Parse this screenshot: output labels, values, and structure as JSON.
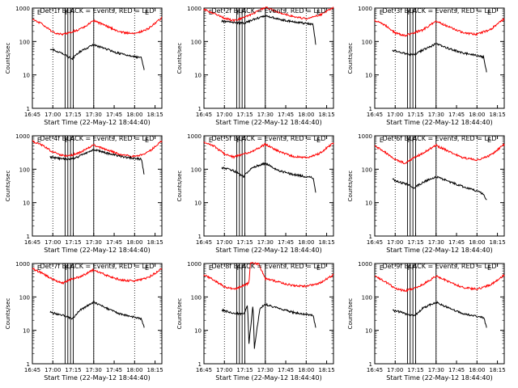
{
  "chart_data": [
    {
      "type": "line",
      "title": "Det 1f BLACK = Events, RED = LLD",
      "xlabel": "Start Time (22-May-12 18:44:40)",
      "ylabel": "Counts/sec",
      "yscale": "log",
      "ylim": [
        1,
        1000
      ],
      "grid": false,
      "x_ticks": [
        "16:45",
        "17:00",
        "17:15",
        "17:30",
        "17:45",
        "18:00",
        "18:15"
      ],
      "y_ticks": [
        "1",
        "10",
        "100",
        "1000"
      ],
      "markers": [
        "E",
        "F",
        "F",
        "E"
      ],
      "series": [
        {
          "color": "#ff0000",
          "x": [
            "16:45",
            "16:52",
            "17:00",
            "17:07",
            "17:13",
            "17:20",
            "17:30",
            "17:40",
            "17:50",
            "18:00",
            "18:10",
            "18:20"
          ],
          "values": [
            460,
            340,
            190,
            160,
            190,
            230,
            420,
            280,
            190,
            170,
            240,
            510
          ]
        },
        {
          "color": "#000000",
          "x": [
            "16:58",
            "17:04",
            "17:09",
            "17:14",
            "17:20",
            "17:30",
            "17:40",
            "17:50",
            "18:00",
            "18:05",
            "18:07"
          ],
          "values": [
            60,
            50,
            40,
            30,
            50,
            80,
            58,
            42,
            35,
            32,
            14
          ]
        }
      ]
    },
    {
      "type": "line",
      "title": "Det 2f BLACK = Events, RED = LLD",
      "xlabel": "Start Time (22-May-12 18:44:40)",
      "ylabel": "Counts/sec",
      "yscale": "log",
      "ylim": [
        1,
        1000
      ],
      "grid": false,
      "x_ticks": [
        "16:45",
        "17:00",
        "17:15",
        "17:30",
        "17:45",
        "18:00",
        "18:15"
      ],
      "y_ticks": [
        "1",
        "10",
        "100",
        "1000"
      ],
      "markers": [
        "E",
        "F",
        "F",
        "E"
      ],
      "series": [
        {
          "color": "#ff0000",
          "x": [
            "16:45",
            "16:52",
            "17:00",
            "17:07",
            "17:13",
            "17:20",
            "17:30",
            "17:40",
            "17:50",
            "18:00",
            "18:10",
            "18:20"
          ],
          "values": [
            900,
            700,
            500,
            420,
            500,
            650,
            1050,
            750,
            560,
            480,
            620,
            1050
          ]
        },
        {
          "color": "#000000",
          "x": [
            "16:58",
            "17:04",
            "17:09",
            "17:14",
            "17:20",
            "17:30",
            "17:40",
            "17:50",
            "18:00",
            "18:05",
            "18:07"
          ],
          "values": [
            400,
            380,
            370,
            350,
            430,
            600,
            460,
            390,
            350,
            330,
            80
          ]
        }
      ]
    },
    {
      "type": "line",
      "title": "Det 3f BLACK = Events, RED = LLD",
      "xlabel": "Start Time (22-May-12 18:44:40)",
      "ylabel": "Counts/sec",
      "yscale": "log",
      "ylim": [
        1,
        1000
      ],
      "grid": false,
      "x_ticks": [
        "16:45",
        "17:00",
        "17:15",
        "17:30",
        "17:45",
        "18:00",
        "18:15"
      ],
      "y_ticks": [
        "1",
        "10",
        "100",
        "1000"
      ],
      "markers": [
        "E",
        "F",
        "F",
        "E"
      ],
      "series": [
        {
          "color": "#ff0000",
          "x": [
            "16:45",
            "16:52",
            "17:00",
            "17:07",
            "17:13",
            "17:20",
            "17:30",
            "17:40",
            "17:50",
            "18:00",
            "18:10",
            "18:20"
          ],
          "values": [
            430,
            320,
            180,
            150,
            180,
            220,
            400,
            270,
            180,
            165,
            230,
            480
          ]
        },
        {
          "color": "#000000",
          "x": [
            "16:58",
            "17:04",
            "17:09",
            "17:14",
            "17:20",
            "17:30",
            "17:40",
            "17:50",
            "18:00",
            "18:05",
            "18:07"
          ],
          "values": [
            55,
            48,
            42,
            40,
            55,
            85,
            60,
            45,
            38,
            34,
            12
          ]
        }
      ]
    },
    {
      "type": "line",
      "title": "Det 4f BLACK = Events, RED = LLD",
      "xlabel": "Start Time (22-May-12 18:44:40)",
      "ylabel": "Counts/sec",
      "yscale": "log",
      "ylim": [
        1,
        1000
      ],
      "grid": false,
      "x_ticks": [
        "16:45",
        "17:00",
        "17:15",
        "17:30",
        "17:45",
        "18:00",
        "18:15"
      ],
      "y_ticks": [
        "1",
        "10",
        "100",
        "1000"
      ],
      "markers": [
        "E",
        "F",
        "F",
        "E"
      ],
      "series": [
        {
          "color": "#ff0000",
          "x": [
            "16:45",
            "16:52",
            "17:00",
            "17:07",
            "17:13",
            "17:20",
            "17:30",
            "17:40",
            "17:50",
            "18:00",
            "18:10",
            "18:20"
          ],
          "values": [
            700,
            520,
            330,
            260,
            260,
            320,
            520,
            380,
            270,
            240,
            320,
            700
          ]
        },
        {
          "color": "#000000",
          "x": [
            "16:58",
            "17:04",
            "17:09",
            "17:14",
            "17:20",
            "17:30",
            "17:40",
            "17:50",
            "18:00",
            "18:05",
            "18:07"
          ],
          "values": [
            230,
            210,
            200,
            200,
            250,
            390,
            300,
            240,
            210,
            200,
            70
          ]
        }
      ]
    },
    {
      "type": "line",
      "title": "Det 5f BLACK = Events, RED = LLD",
      "xlabel": "Start Time (22-May-12 18:44:40)",
      "ylabel": "Counts/sec",
      "yscale": "log",
      "ylim": [
        1,
        1000
      ],
      "grid": false,
      "x_ticks": [
        "16:45",
        "17:00",
        "17:15",
        "17:30",
        "17:45",
        "18:00",
        "18:15"
      ],
      "y_ticks": [
        "1",
        "10",
        "100",
        "1000"
      ],
      "markers": [
        "E",
        "F",
        "F",
        "E"
      ],
      "series": [
        {
          "color": "#ff0000",
          "x": [
            "16:45",
            "16:52",
            "17:00",
            "17:07",
            "17:13",
            "17:20",
            "17:30",
            "17:40",
            "17:50",
            "18:00",
            "18:10",
            "18:20"
          ],
          "values": [
            650,
            500,
            290,
            230,
            280,
            330,
            560,
            340,
            240,
            220,
            300,
            620
          ]
        },
        {
          "color": "#000000",
          "x": [
            "16:58",
            "17:04",
            "17:09",
            "17:14",
            "17:20",
            "17:30",
            "17:40",
            "17:50",
            "18:00",
            "18:05",
            "18:07"
          ],
          "values": [
            110,
            100,
            80,
            60,
            110,
            150,
            90,
            70,
            60,
            55,
            20
          ]
        }
      ]
    },
    {
      "type": "line",
      "title": "Det 6f BLACK = Events, RED = LLD",
      "xlabel": "Start Time (22-May-12 18:44:40)",
      "ylabel": "Counts/sec",
      "yscale": "log",
      "ylim": [
        1,
        1000
      ],
      "grid": false,
      "x_ticks": [
        "16:45",
        "17:00",
        "17:15",
        "17:30",
        "17:45",
        "18:00",
        "18:15"
      ],
      "y_ticks": [
        "1",
        "10",
        "100",
        "1000"
      ],
      "markers": [
        "E",
        "F",
        "F",
        "E"
      ],
      "series": [
        {
          "color": "#ff0000",
          "x": [
            "16:45",
            "16:52",
            "17:00",
            "17:07",
            "17:13",
            "17:20",
            "17:30",
            "17:40",
            "17:50",
            "18:00",
            "18:10",
            "18:20"
          ],
          "values": [
            500,
            330,
            200,
            150,
            210,
            300,
            520,
            330,
            220,
            190,
            260,
            560
          ]
        },
        {
          "color": "#000000",
          "x": [
            "16:58",
            "17:04",
            "17:09",
            "17:14",
            "17:20",
            "17:30",
            "17:40",
            "17:50",
            "18:00",
            "18:05",
            "18:07"
          ],
          "values": [
            50,
            40,
            35,
            28,
            40,
            60,
            42,
            30,
            22,
            18,
            12
          ]
        }
      ]
    },
    {
      "type": "line",
      "title": "Det 7f BLACK = Events, RED = LLD",
      "xlabel": "Start Time (22-May-12 18:44:40)",
      "ylabel": "Counts/sec",
      "yscale": "log",
      "ylim": [
        1,
        1000
      ],
      "grid": false,
      "x_ticks": [
        "16:45",
        "17:00",
        "17:15",
        "17:30",
        "17:45",
        "18:00",
        "18:15"
      ],
      "y_ticks": [
        "1",
        "10",
        "100",
        "1000"
      ],
      "markers": [
        "E",
        "F",
        "F",
        "E"
      ],
      "series": [
        {
          "color": "#ff0000",
          "x": [
            "16:45",
            "16:52",
            "17:00",
            "17:07",
            "17:13",
            "17:20",
            "17:30",
            "17:40",
            "17:50",
            "18:00",
            "18:10",
            "18:20"
          ],
          "values": [
            700,
            520,
            330,
            260,
            330,
            400,
            650,
            430,
            320,
            300,
            380,
            700
          ]
        },
        {
          "color": "#000000",
          "x": [
            "16:58",
            "17:04",
            "17:09",
            "17:14",
            "17:20",
            "17:30",
            "17:40",
            "17:50",
            "18:00",
            "18:05",
            "18:07"
          ],
          "values": [
            35,
            30,
            28,
            22,
            40,
            70,
            45,
            30,
            25,
            22,
            12
          ]
        }
      ]
    },
    {
      "type": "line",
      "title": "Det 8f BLACK = Events, RED = LLD",
      "xlabel": "Start Time (22-May-12 18:44:40)",
      "ylabel": "Counts/sec",
      "yscale": "log",
      "ylim": [
        1,
        1000
      ],
      "grid": false,
      "x_ticks": [
        "16:45",
        "17:00",
        "17:15",
        "17:30",
        "17:45",
        "18:00",
        "18:15"
      ],
      "y_ticks": [
        "1",
        "10",
        "100",
        "1000"
      ],
      "markers": [
        "E",
        "F",
        "F",
        "E"
      ],
      "series": [
        {
          "color": "#ff0000",
          "x": [
            "16:45",
            "16:52",
            "17:00",
            "17:07",
            "17:13",
            "17:18",
            "17:19",
            "17:21",
            "17:23",
            "17:25",
            "17:30",
            "17:40",
            "17:50",
            "18:00",
            "18:10",
            "18:20"
          ],
          "values": [
            450,
            330,
            200,
            170,
            210,
            260,
            1000,
            1000,
            1000,
            1000,
            350,
            280,
            220,
            210,
            260,
            460
          ]
        },
        {
          "color": "#000000",
          "x": [
            "16:58",
            "17:04",
            "17:09",
            "17:14",
            "17:17",
            "17:18",
            "17:21",
            "17:22",
            "17:26",
            "17:30",
            "17:40",
            "17:50",
            "18:00",
            "18:05",
            "18:07"
          ],
          "values": [
            40,
            35,
            32,
            30,
            55,
            4,
            60,
            3,
            45,
            60,
            45,
            35,
            30,
            28,
            12
          ]
        }
      ]
    },
    {
      "type": "line",
      "title": "Det 9f BLACK = Events, RED = LLD",
      "xlabel": "Start Time (22-May-12 18:44:40)",
      "ylabel": "Counts/sec",
      "yscale": "log",
      "ylim": [
        1,
        1000
      ],
      "grid": false,
      "x_ticks": [
        "16:45",
        "17:00",
        "17:15",
        "17:30",
        "17:45",
        "18:00",
        "18:15"
      ],
      "y_ticks": [
        "1",
        "10",
        "100",
        "1000"
      ],
      "markers": [
        "E",
        "F",
        "F",
        "E"
      ],
      "series": [
        {
          "color": "#ff0000",
          "x": [
            "16:45",
            "16:52",
            "17:00",
            "17:07",
            "17:13",
            "17:20",
            "17:30",
            "17:40",
            "17:50",
            "18:00",
            "18:10",
            "18:20"
          ],
          "values": [
            420,
            300,
            180,
            150,
            180,
            230,
            420,
            280,
            190,
            170,
            230,
            450
          ]
        },
        {
          "color": "#000000",
          "x": [
            "16:58",
            "17:04",
            "17:09",
            "17:14",
            "17:20",
            "17:30",
            "17:40",
            "17:50",
            "18:00",
            "18:05",
            "18:07"
          ],
          "values": [
            40,
            35,
            30,
            27,
            45,
            70,
            45,
            32,
            26,
            24,
            12
          ]
        }
      ]
    }
  ]
}
